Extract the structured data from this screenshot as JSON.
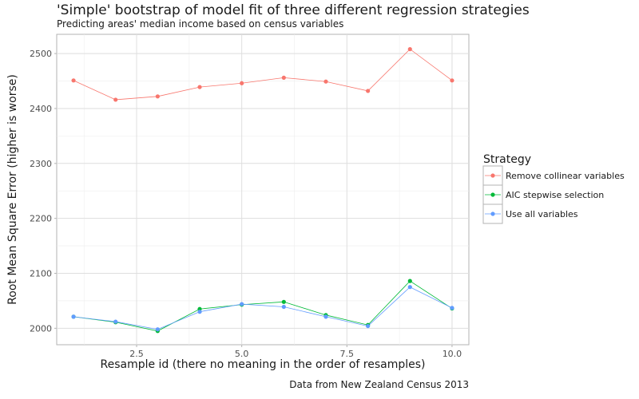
{
  "chart_data": {
    "type": "line",
    "title": "'Simple' bootstrap of model fit of three different regression strategies",
    "subtitle": "Predicting areas' median income based on census variables",
    "caption": "Data from New Zealand Census 2013",
    "xlabel": "Resample id (there no meaning in the order of resamples)",
    "ylabel": "Root Mean Square Error (higher is worse)",
    "xlim": [
      0.6,
      10.4
    ],
    "ylim": [
      1970,
      2535
    ],
    "x_ticks": [
      2.5,
      5.0,
      7.5,
      10.0
    ],
    "x_tick_labels": [
      "2.5",
      "5.0",
      "7.5",
      "10.0"
    ],
    "y_ticks": [
      2000,
      2100,
      2200,
      2300,
      2400,
      2500
    ],
    "y_tick_labels": [
      "2000",
      "2100",
      "2200",
      "2300",
      "2400",
      "2500"
    ],
    "grid": true,
    "legend_position": "right",
    "legend_title": "Strategy",
    "x": [
      1,
      2,
      3,
      4,
      5,
      6,
      7,
      8,
      9,
      10
    ],
    "series": [
      {
        "name": "Remove collinear variables",
        "color": "#F8766D",
        "values": [
          2451,
          2416,
          2422,
          2439,
          2446,
          2456,
          2449,
          2432,
          2508,
          2451
        ]
      },
      {
        "name": "AIC stepwise selection",
        "color": "#00BA38",
        "values": [
          2021,
          2011,
          1995,
          2035,
          2043,
          2048,
          2024,
          2006,
          2086,
          2036
        ]
      },
      {
        "name": "Use all variables",
        "color": "#619CFF",
        "values": [
          2021,
          2012,
          1998,
          2030,
          2044,
          2039,
          2021,
          2004,
          2075,
          2037
        ]
      }
    ]
  }
}
